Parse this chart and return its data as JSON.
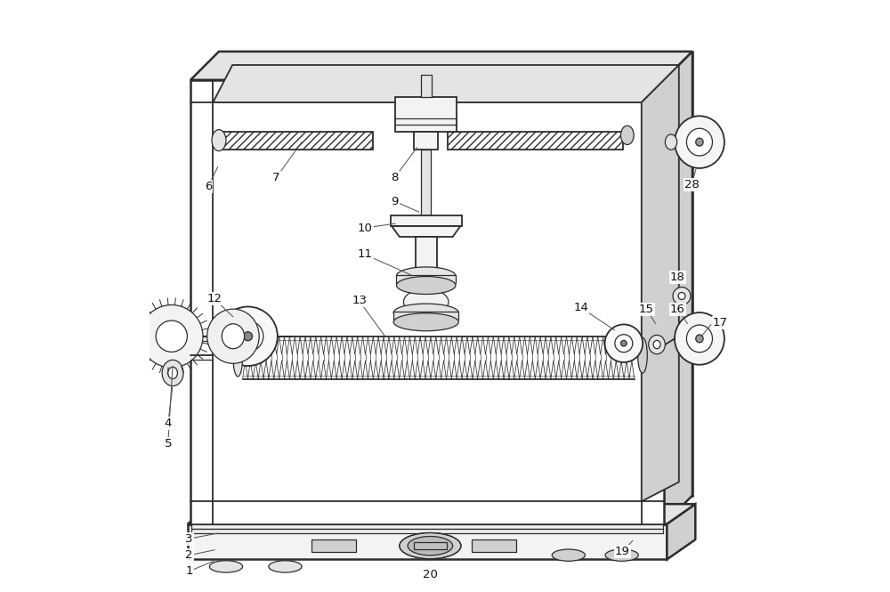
{
  "bg": "#ffffff",
  "lc": "#2d2d2d",
  "lw_frame": 1.8,
  "lw_med": 1.3,
  "lw_thin": 0.9,
  "fc_light": "#f3f3f3",
  "fc_mid": "#e4e4e4",
  "fc_dark": "#d0d0d0",
  "fc_white": "#ffffff",
  "hatch_pat": "////",
  "ox": 0.048,
  "oy": 0.048,
  "fl": 0.07,
  "fr": 0.87,
  "fb": 0.115,
  "ft": 0.865,
  "base_ybot": 0.055,
  "base_ytop": 0.115
}
